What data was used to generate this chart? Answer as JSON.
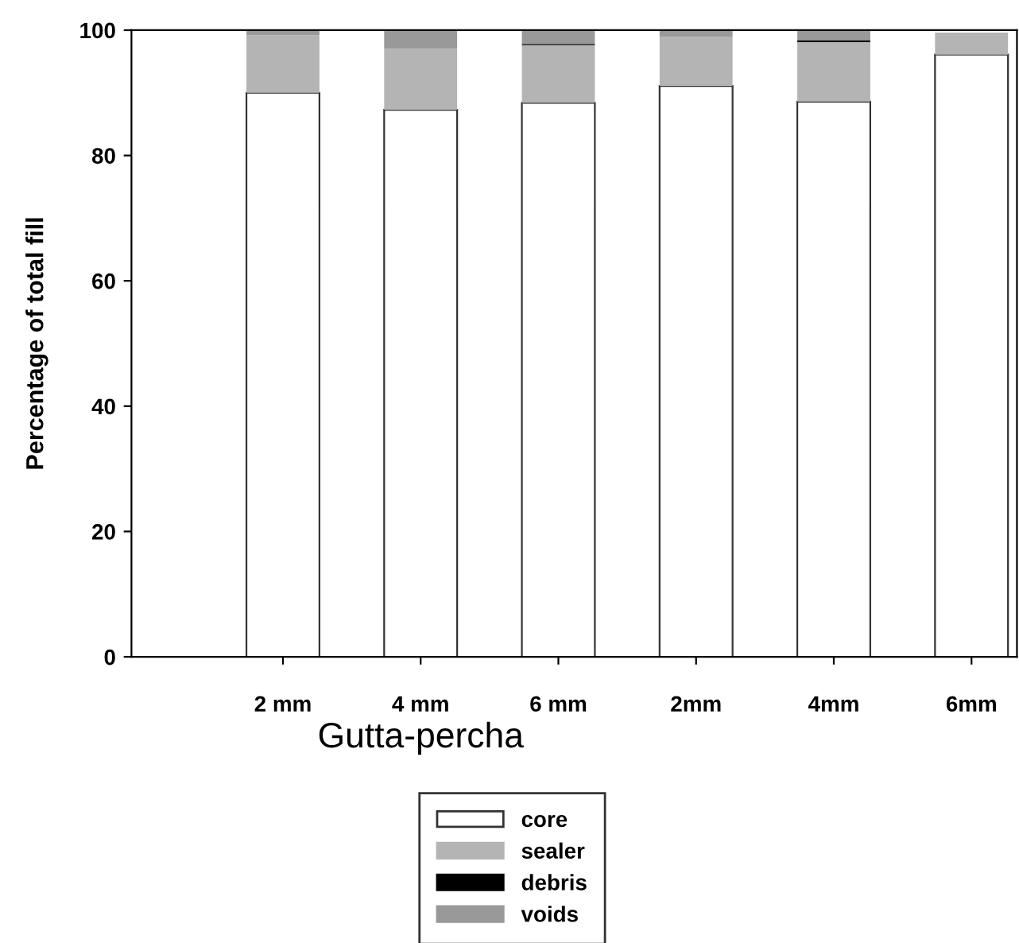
{
  "chart_data": {
    "type": "bar",
    "stacked": true,
    "ylabel": "Percentage of total fill",
    "categories": [
      "2 mm",
      "4 mm",
      "6 mm",
      "2mm",
      "4mm",
      "6mm"
    ],
    "series": [
      {
        "name": "core",
        "color": "#ffffff",
        "values": [
          90.0,
          87.3,
          88.4,
          91.1,
          88.6,
          96.1
        ]
      },
      {
        "name": "sealer",
        "color": "#b4b4b4",
        "values": [
          9.2,
          9.7,
          9.2,
          7.8,
          9.5,
          3.5
        ]
      },
      {
        "name": "debris",
        "color": "#000000",
        "values": [
          0,
          0,
          0.2,
          0,
          0.3,
          null
        ]
      },
      {
        "name": "voids",
        "color": "#999999",
        "values": [
          0.8,
          3.0,
          2.2,
          1.1,
          1.6,
          0
        ]
      }
    ],
    "annotations": [
      "Gutta-percha"
    ],
    "ylim": [
      0,
      100
    ],
    "yticks": [
      0,
      20,
      40,
      60,
      80,
      100
    ],
    "grid": false,
    "legend": "bottom"
  }
}
